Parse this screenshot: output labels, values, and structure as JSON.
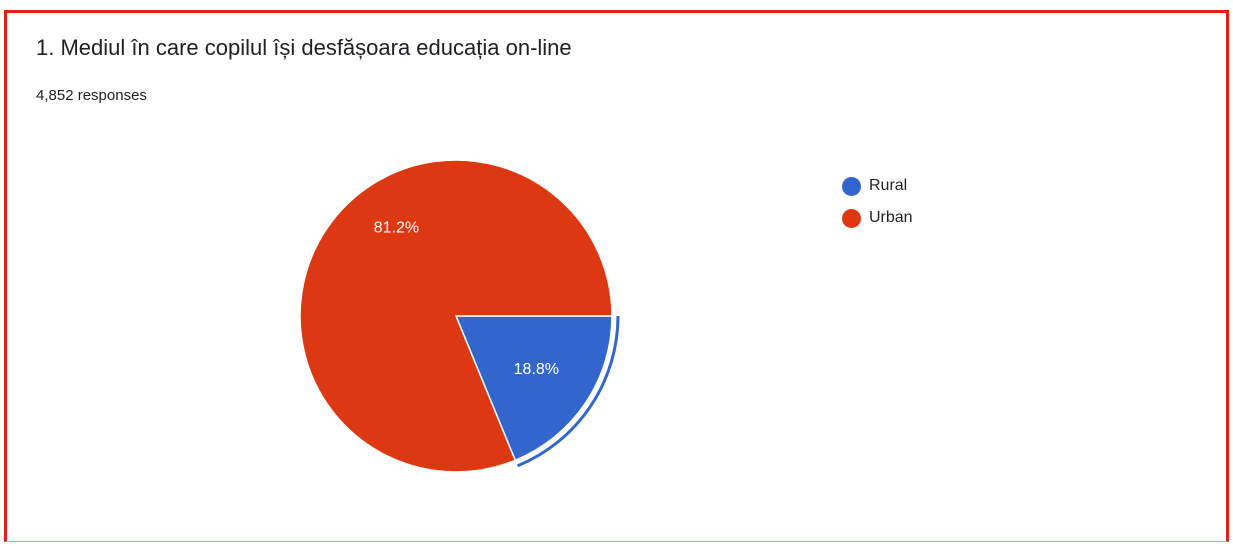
{
  "card": {
    "title": "1. Mediul în care copilul își desfășoara educația on-line",
    "responses": "4,852 responses"
  },
  "colors": {
    "border": "#e0201b",
    "rural": "#3366cc",
    "urban": "#dc3912"
  },
  "chart_data": {
    "type": "pie",
    "categories": [
      "Rural",
      "Urban"
    ],
    "values": [
      18.8,
      81.2
    ],
    "labels": [
      "18.8%",
      "81.2%"
    ],
    "colors": [
      "#3366cc",
      "#dc3912"
    ],
    "exploded_slice": "Rural",
    "legend_position": "right"
  }
}
